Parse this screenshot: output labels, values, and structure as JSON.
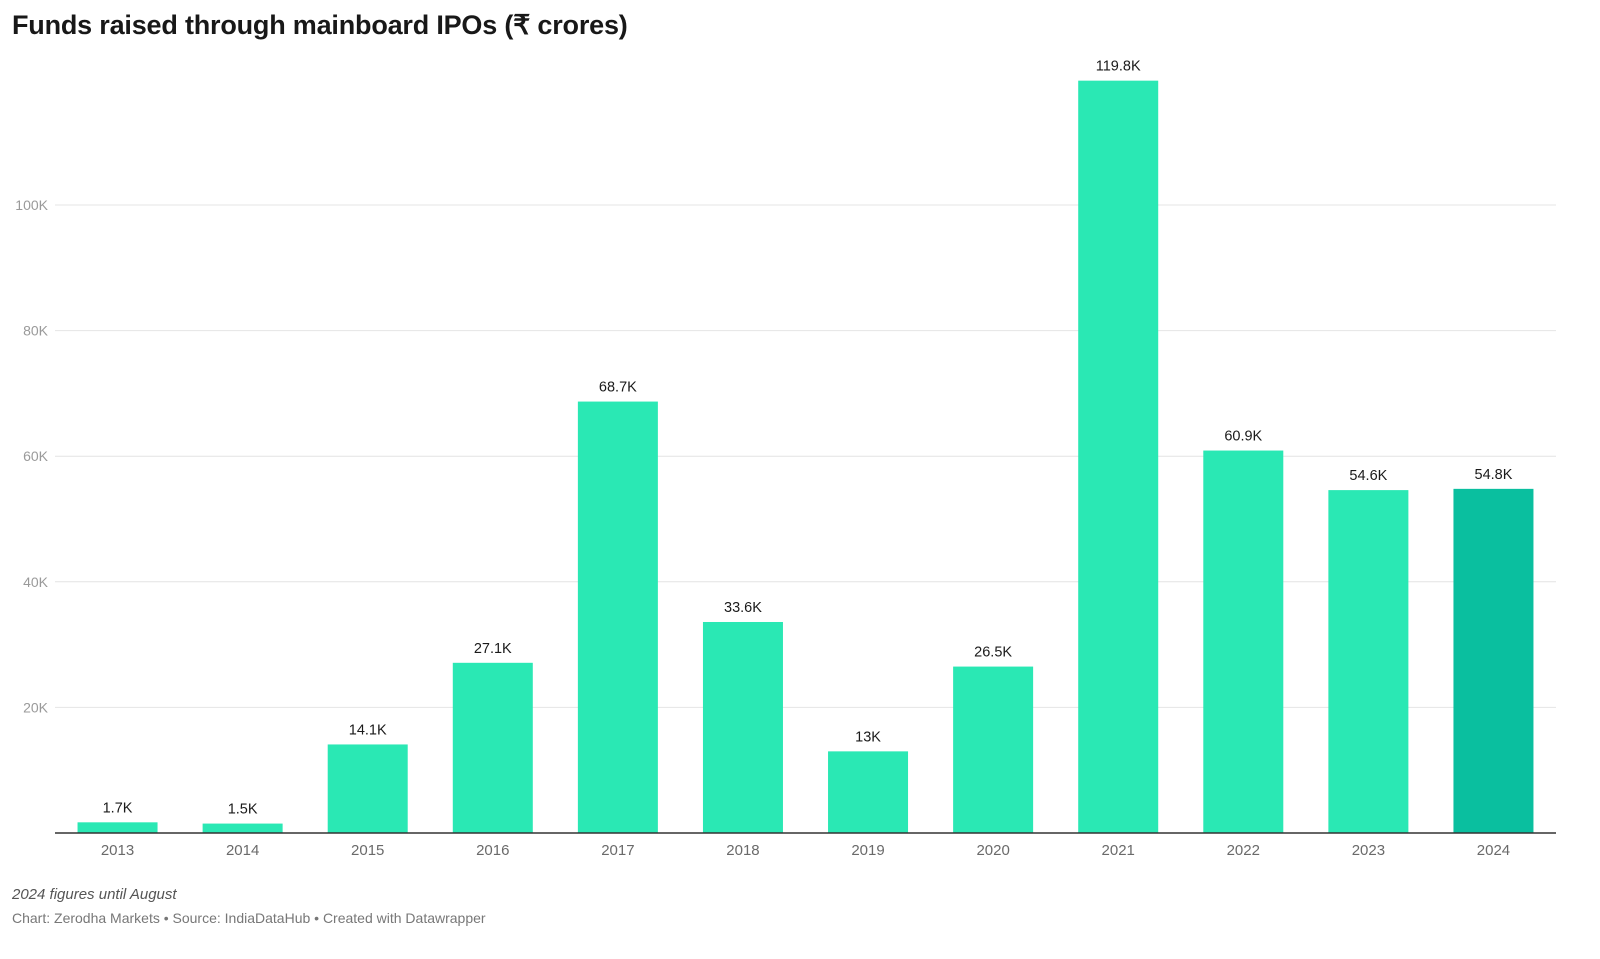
{
  "chart_data": {
    "type": "bar",
    "title": "Funds raised through mainboard IPOs (₹ crores)",
    "categories": [
      "2013",
      "2014",
      "2015",
      "2016",
      "2017",
      "2018",
      "2019",
      "2020",
      "2021",
      "2022",
      "2023",
      "2024"
    ],
    "values": [
      1.7,
      1.5,
      14.1,
      27.1,
      68.7,
      33.6,
      13,
      26.5,
      119.8,
      60.9,
      54.6,
      54.8
    ],
    "value_unit": "thousand crores",
    "value_labels": [
      "1.7K",
      "1.5K",
      "14.1K",
      "27.1K",
      "68.7K",
      "33.6K",
      "13K",
      "26.5K",
      "119.8K",
      "60.9K",
      "54.6K",
      "54.8K"
    ],
    "y_ticks": [
      20,
      40,
      60,
      80,
      100
    ],
    "y_tick_labels": [
      "20K",
      "40K",
      "60K",
      "80K",
      "100K"
    ],
    "ylim": [
      0,
      120
    ],
    "grid": true,
    "legend": "none",
    "colors": {
      "bar": "#2ae8b4",
      "highlight_bar": "#0abf9f",
      "highlight_category": "2024",
      "gridline": "#e4e4e4",
      "baseline": "#333333"
    }
  },
  "note": "2024 figures until August",
  "footer": "Chart: Zerodha Markets • Source: IndiaDataHub • Created with Datawrapper"
}
